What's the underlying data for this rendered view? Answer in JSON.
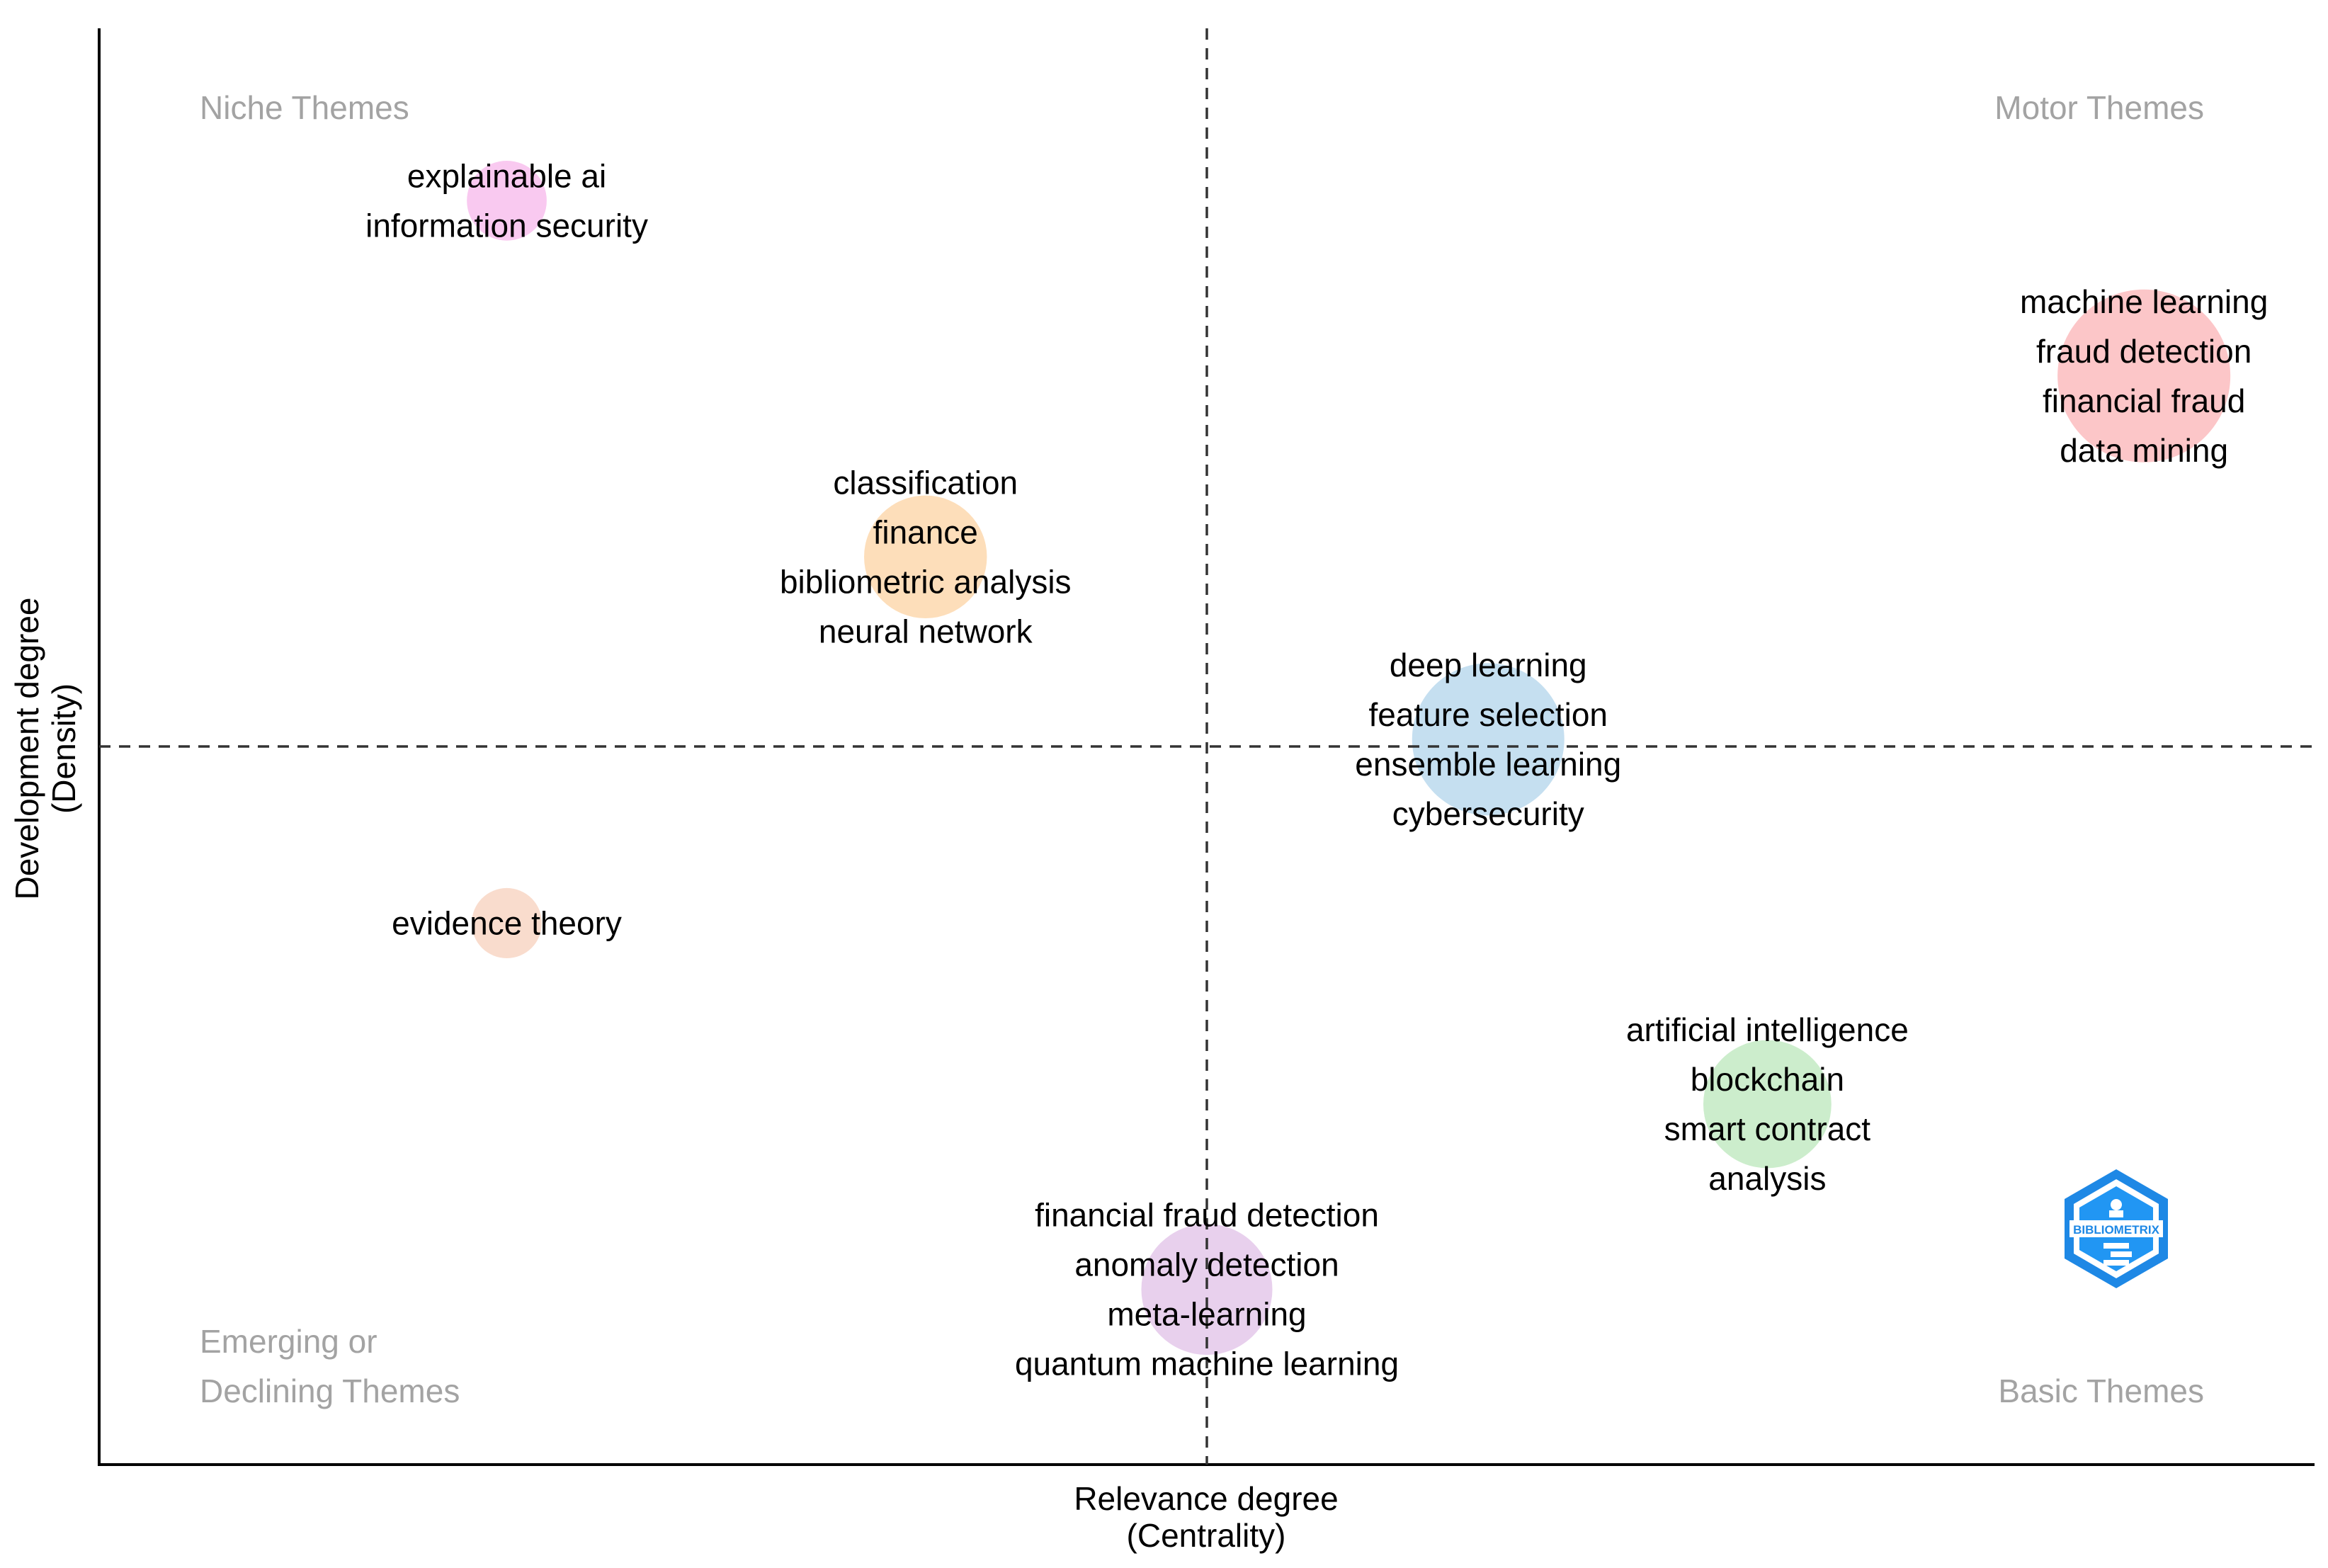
{
  "chart_data": {
    "type": "scatter",
    "subtype": "thematic-map",
    "xlabel": "Relevance degree",
    "xlabel_sub": "(Centrality)",
    "ylabel": "Development degree",
    "ylabel_sub": "(Density)",
    "xlim": [
      0,
      100
    ],
    "ylim": [
      0,
      100
    ],
    "x_divider": 50,
    "y_divider": 50,
    "grid": false,
    "quadrants": {
      "top_left": "Niche Themes",
      "top_right": "Motor Themes",
      "bottom_left_line1": "Emerging or",
      "bottom_left_line2": "Declining Themes",
      "bottom_right": "Basic Themes"
    },
    "logo": {
      "text": "BIBLIOMETRIX",
      "icon": "bibliometrix-logo-icon",
      "color": "#1e88e5"
    },
    "clusters": [
      {
        "id": "explainable-ai",
        "x": 18.4,
        "y": 88.0,
        "size": 0.1,
        "color": "#f8c3ee",
        "labels": [
          "explainable ai",
          "information security"
        ]
      },
      {
        "id": "machine-learning",
        "x": 92.3,
        "y": 75.8,
        "size": 1.0,
        "color": "#fcc0c2",
        "labels": [
          "machine learning",
          "fraud detection",
          "financial fraud",
          "data mining"
        ]
      },
      {
        "id": "classification",
        "x": 37.3,
        "y": 63.2,
        "size": 0.4,
        "color": "#fddab3",
        "labels": [
          "classification",
          "finance",
          "bibliometric analysis",
          "neural network"
        ]
      },
      {
        "id": "deep-learning",
        "x": 62.7,
        "y": 50.5,
        "size": 0.72,
        "color": "#bfdbee",
        "labels": [
          "deep learning",
          "feature selection",
          "ensemble learning",
          "cybersecurity"
        ]
      },
      {
        "id": "evidence-theory",
        "x": 18.4,
        "y": 37.7,
        "size": 0.06,
        "color": "#f8d8c8",
        "labels": [
          "evidence theory"
        ]
      },
      {
        "id": "artificial-intelligence",
        "x": 75.3,
        "y": 25.1,
        "size": 0.45,
        "color": "#c7ebc7",
        "labels": [
          "artificial intelligence",
          "blockchain",
          "smart contract",
          "analysis"
        ]
      },
      {
        "id": "financial-fraud-detection",
        "x": 50.0,
        "y": 12.2,
        "size": 0.48,
        "color": "#e6cbeb",
        "labels": [
          "financial fraud detection",
          "anomaly detection",
          "meta-learning",
          "quantum machine learning"
        ]
      }
    ]
  }
}
